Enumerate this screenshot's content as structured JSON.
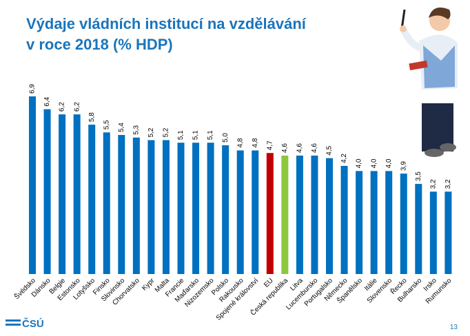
{
  "chart_data": {
    "type": "bar",
    "title_lines": [
      "Výdaje vládních institucí na vzdělávání",
      "v roce 2018 (% HDP)"
    ],
    "categories": [
      "Švédsko",
      "Dánsko",
      "Belgie",
      "Estonsko",
      "Lotyšsko",
      "Finsko",
      "Slovinsko",
      "Chorvatsko",
      "Kypr",
      "Malta",
      "Francie",
      "Maďarsko",
      "Nizozemsko",
      "Polsko",
      "Rakousko",
      "Spojené království",
      "EU",
      "Česká republika",
      "Litva",
      "Lucembursko",
      "Portugalsko",
      "Německo",
      "Španělsko",
      "Itálie",
      "Slovensko",
      "Řecko",
      "Bulharsko",
      "Irsko",
      "Rumunsko"
    ],
    "values": [
      6.9,
      6.4,
      6.2,
      6.2,
      5.8,
      5.5,
      5.4,
      5.3,
      5.2,
      5.2,
      5.1,
      5.1,
      5.1,
      5.0,
      4.8,
      4.8,
      4.7,
      4.6,
      4.6,
      4.6,
      4.5,
      4.2,
      4.0,
      4.0,
      4.0,
      3.9,
      3.5,
      3.2,
      3.2
    ],
    "value_labels": [
      "6,9",
      "6,4",
      "6,2",
      "6,2",
      "5,8",
      "5,5",
      "5,4",
      "5,3",
      "5,2",
      "5,2",
      "5,1",
      "5,1",
      "5,1",
      "5,0",
      "4,8",
      "4,8",
      "4,7",
      "4,6",
      "4,6",
      "4,6",
      "4,5",
      "4,2",
      "4,0",
      "4,0",
      "4,0",
      "3,9",
      "3,5",
      "3,2",
      "3,2"
    ],
    "colors": [
      "#0070c0",
      "#0070c0",
      "#0070c0",
      "#0070c0",
      "#0070c0",
      "#0070c0",
      "#0070c0",
      "#0070c0",
      "#0070c0",
      "#0070c0",
      "#0070c0",
      "#0070c0",
      "#0070c0",
      "#0070c0",
      "#0070c0",
      "#0070c0",
      "#c00000",
      "#8dc63f",
      "#0070c0",
      "#0070c0",
      "#0070c0",
      "#0070c0",
      "#0070c0",
      "#0070c0",
      "#0070c0",
      "#0070c0",
      "#0070c0",
      "#0070c0",
      "#0070c0"
    ]
  },
  "footer": {
    "logo": "ČSÚ",
    "page": "13"
  }
}
